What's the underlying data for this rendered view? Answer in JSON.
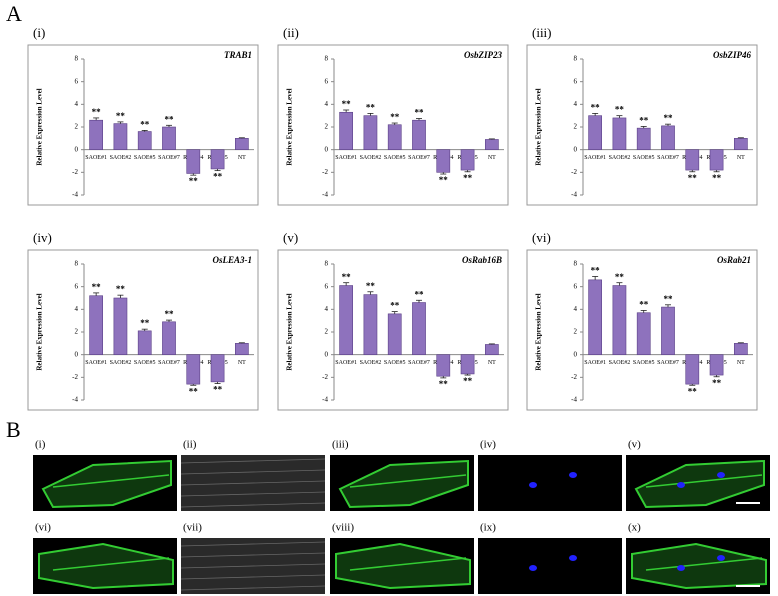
{
  "chart_data": [
    {
      "type": "bar",
      "label": "(i)",
      "title": "TRAB1",
      "y_label": "Relative Expression Level",
      "categories": [
        "SAOE#1",
        "SAOE#2",
        "SAOE#5",
        "SAOE#7",
        "RNAi#4",
        "RNAi#5",
        "NT"
      ],
      "values": [
        2.6,
        2.3,
        1.6,
        2.0,
        -2.1,
        -1.7,
        1.0
      ],
      "errors": [
        0.2,
        0.15,
        0.1,
        0.15,
        0.15,
        0.15,
        0.05
      ],
      "significance": [
        "**",
        "**",
        "**",
        "**",
        "**",
        "**",
        null
      ],
      "color": "#8e72bd",
      "ylim": [
        -4,
        8
      ],
      "yticks": [
        -4,
        -2,
        0,
        2,
        4,
        6,
        8
      ]
    },
    {
      "type": "bar",
      "label": "(ii)",
      "title": "OsbZIP23",
      "y_label": "Relative Expression Level",
      "categories": [
        "SAOE#1",
        "SAOE#2",
        "SAOE#5",
        "SAOE#7",
        "RNAi#4",
        "RNAi#5",
        "NT"
      ],
      "values": [
        3.3,
        3.0,
        2.2,
        2.6,
        -2.0,
        -1.8,
        0.9
      ],
      "errors": [
        0.2,
        0.2,
        0.15,
        0.15,
        0.15,
        0.15,
        0.05
      ],
      "significance": [
        "**",
        "**",
        "**",
        "**",
        "**",
        "**",
        null
      ],
      "color": "#8e72bd",
      "ylim": [
        -4,
        8
      ],
      "yticks": [
        -4,
        -2,
        0,
        2,
        4,
        6,
        8
      ]
    },
    {
      "type": "bar",
      "label": "(iii)",
      "title": "OsbZIP46",
      "y_label": "Relative Expression Level",
      "categories": [
        "SAOE#1",
        "SAOE#2",
        "SAOE#5",
        "SAOE#7",
        "RNAi#4",
        "RNAi#5",
        "NT"
      ],
      "values": [
        3.0,
        2.8,
        1.9,
        2.1,
        -1.8,
        -1.8,
        1.0
      ],
      "errors": [
        0.2,
        0.2,
        0.15,
        0.15,
        0.15,
        0.15,
        0.05
      ],
      "significance": [
        "**",
        "**",
        "**",
        "**",
        "**",
        "**",
        null
      ],
      "color": "#8e72bd",
      "ylim": [
        -4,
        8
      ],
      "yticks": [
        -4,
        -2,
        0,
        2,
        4,
        6,
        8
      ]
    },
    {
      "type": "bar",
      "label": "(iv)",
      "title": "OsLEA3-1",
      "y_label": "Relative Expression Level",
      "categories": [
        "SAOE#1",
        "SAOE#2",
        "SAOE#5",
        "SAOE#7",
        "RNAi#4",
        "RNAi#5",
        "NT"
      ],
      "values": [
        5.2,
        5.0,
        2.1,
        2.9,
        -2.6,
        -2.4,
        1.0
      ],
      "errors": [
        0.25,
        0.25,
        0.15,
        0.15,
        0.1,
        0.15,
        0.05
      ],
      "significance": [
        "**",
        "**",
        "**",
        "**",
        "**",
        "**",
        null
      ],
      "color": "#8e72bd",
      "ylim": [
        -4,
        8
      ],
      "yticks": [
        -4,
        -2,
        0,
        2,
        4,
        6,
        8
      ]
    },
    {
      "type": "bar",
      "label": "(v)",
      "title": "OsRab16B",
      "y_label": "Relative Expression Level",
      "categories": [
        "SAOE#1",
        "SAOE#2",
        "SAOE#5",
        "SAOE#7",
        "RNAi#4",
        "RNAi#5",
        "NT"
      ],
      "values": [
        6.1,
        5.3,
        3.6,
        4.6,
        -1.9,
        -1.7,
        0.9
      ],
      "errors": [
        0.25,
        0.25,
        0.2,
        0.2,
        0.15,
        0.1,
        0.05
      ],
      "significance": [
        "**",
        "**",
        "**",
        "**",
        "**",
        "**",
        null
      ],
      "color": "#8e72bd",
      "ylim": [
        -4,
        8
      ],
      "yticks": [
        -4,
        -2,
        0,
        2,
        4,
        6,
        8
      ]
    },
    {
      "type": "bar",
      "label": "(vi)",
      "title": "OsRab21",
      "y_label": "Relative Expression Level",
      "categories": [
        "SAOE#1",
        "SAOE#2",
        "SAOE#5",
        "SAOE#7",
        "RNAi#4",
        "RNAi#5",
        "NT"
      ],
      "values": [
        6.6,
        6.1,
        3.7,
        4.2,
        -2.6,
        -1.8,
        1.0
      ],
      "errors": [
        0.3,
        0.25,
        0.2,
        0.2,
        0.1,
        0.15,
        0.05
      ],
      "significance": [
        "**",
        "**",
        "**",
        "**",
        "**",
        "**",
        null
      ],
      "color": "#8e72bd",
      "ylim": [
        -4,
        8
      ],
      "yticks": [
        -4,
        -2,
        0,
        2,
        4,
        6,
        8
      ]
    }
  ],
  "figure": {
    "label_a": "A",
    "label_b": "B",
    "image_labels": [
      "(i)",
      "(ii)",
      "(iii)",
      "(iv)",
      "(v)",
      "(vi)",
      "(vii)",
      "(viii)",
      "(ix)",
      "(x)"
    ]
  }
}
